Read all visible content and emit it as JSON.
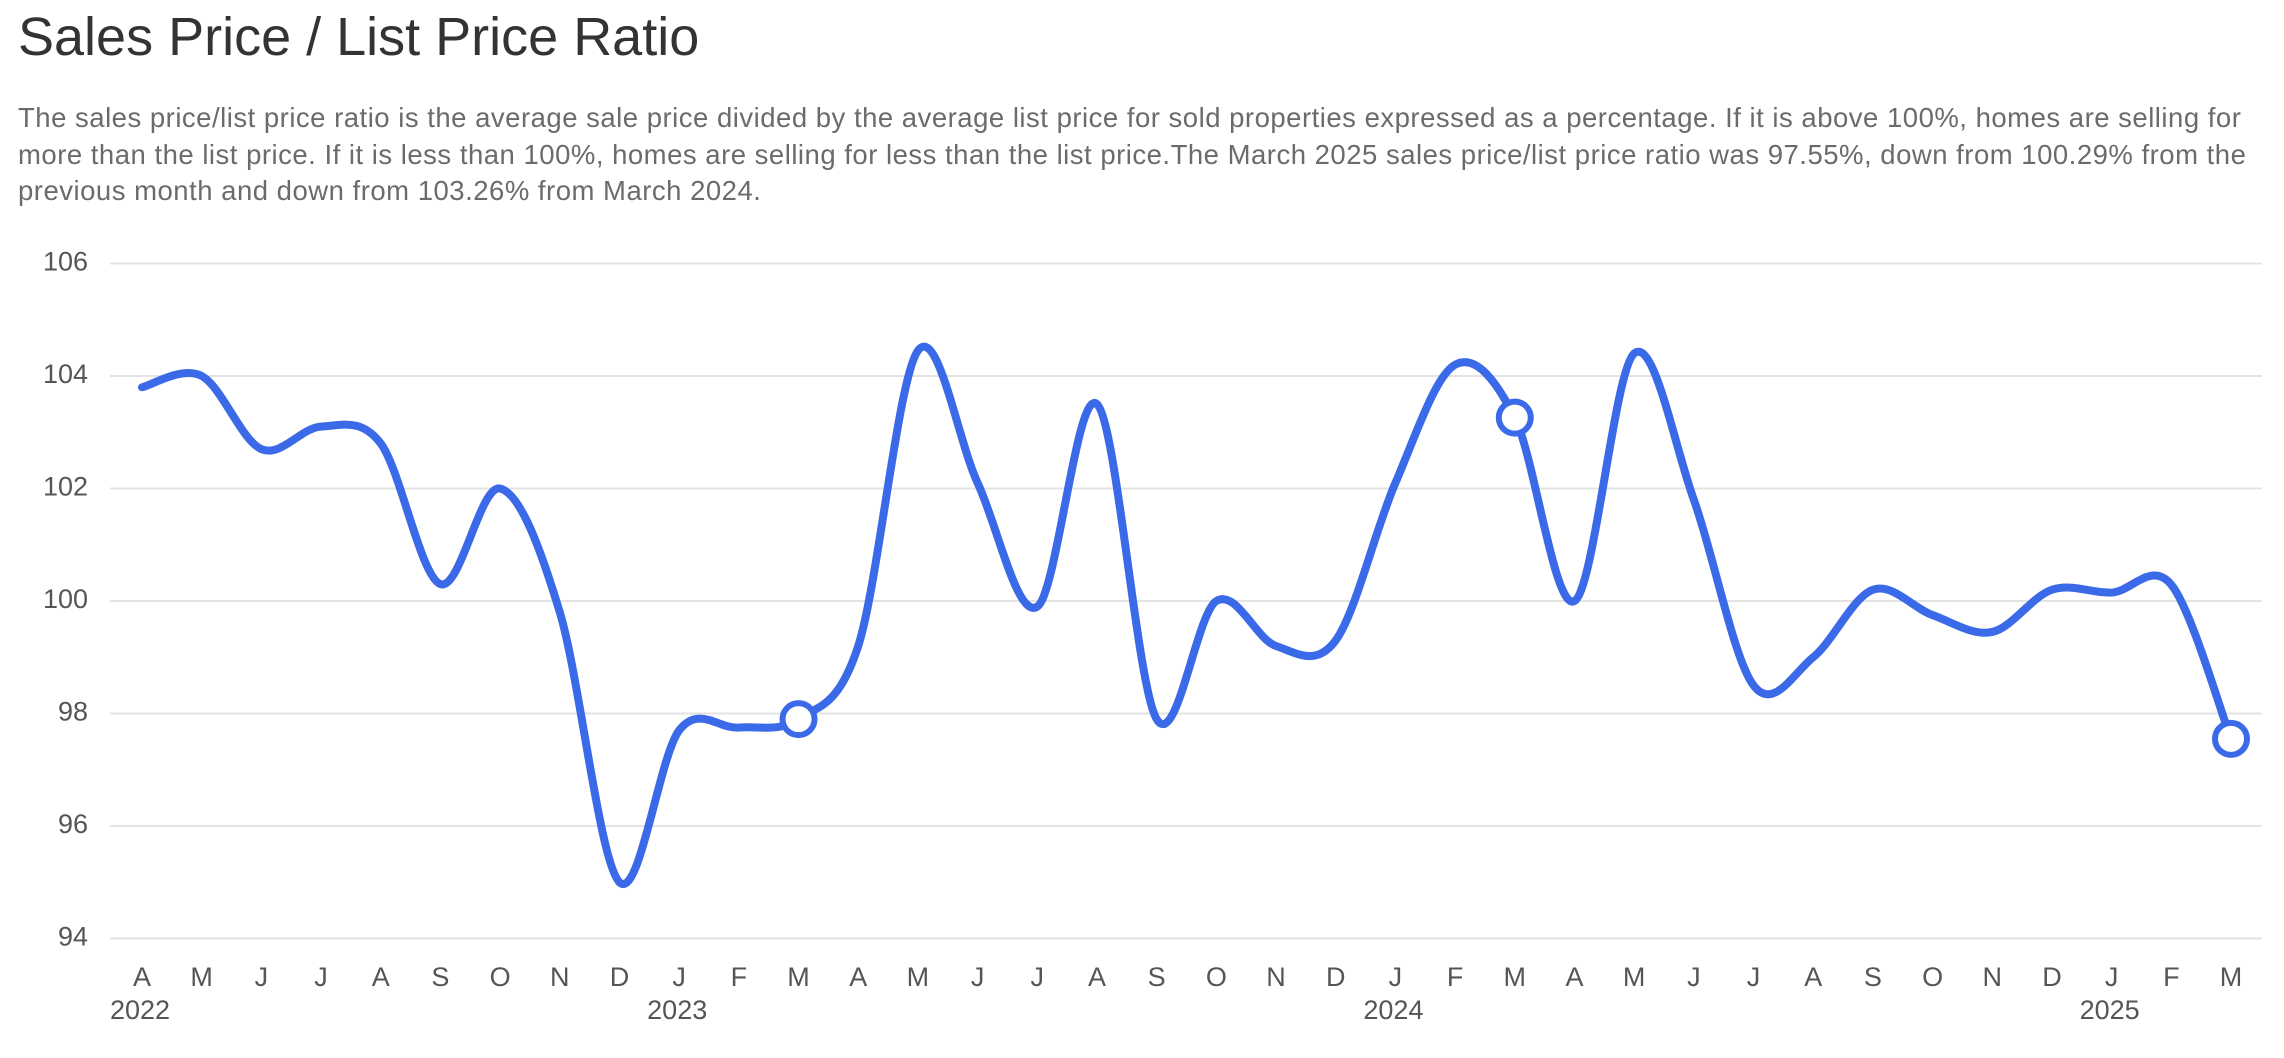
{
  "chart_data": {
    "type": "line",
    "title": "Sales Price / List Price Ratio",
    "subtitle": "The sales price/list price ratio is the average sale price divided by the average list price for sold properties expressed as a percentage. If it is above 100%, homes are selling for more than the list price. If it is less than 100%, homes are selling for less than the list price.The March 2025 sales price/list price ratio was 97.55%, down from 100.29% from the previous month and down from 103.26% from March 2024.",
    "categories": [
      "A",
      "M",
      "J",
      "J",
      "A",
      "S",
      "O",
      "N",
      "D",
      "J",
      "F",
      "M",
      "A",
      "M",
      "J",
      "J",
      "A",
      "S",
      "O",
      "N",
      "D",
      "J",
      "F",
      "M",
      "A",
      "M",
      "J",
      "J",
      "A",
      "S",
      "O",
      "N",
      "D",
      "J",
      "F",
      "M"
    ],
    "year_labels": [
      "2022",
      null,
      null,
      null,
      null,
      null,
      null,
      null,
      null,
      "2023",
      null,
      null,
      null,
      null,
      null,
      null,
      null,
      null,
      null,
      null,
      null,
      "2024",
      null,
      null,
      null,
      null,
      null,
      null,
      null,
      null,
      null,
      null,
      null,
      "2025",
      null,
      null
    ],
    "series": [
      {
        "name": "Sales Price / List Price Ratio",
        "color": "#3a6ae8",
        "values": [
          103.8,
          104.0,
          102.7,
          103.1,
          102.8,
          100.3,
          102.0,
          99.8,
          95.0,
          97.7,
          97.75,
          97.9,
          99.2,
          104.45,
          102.1,
          99.9,
          103.5,
          97.9,
          100.0,
          99.2,
          99.3,
          102.1,
          104.2,
          103.26,
          100.0,
          104.4,
          101.8,
          98.5,
          99.0,
          100.2,
          99.75,
          99.45,
          100.2,
          100.15,
          100.29,
          97.55
        ]
      }
    ],
    "highlighted_points": [
      11,
      23,
      35
    ],
    "ylim": [
      94,
      106
    ],
    "yticks": [
      94,
      96,
      98,
      100,
      102,
      104,
      106
    ],
    "grid": true
  }
}
